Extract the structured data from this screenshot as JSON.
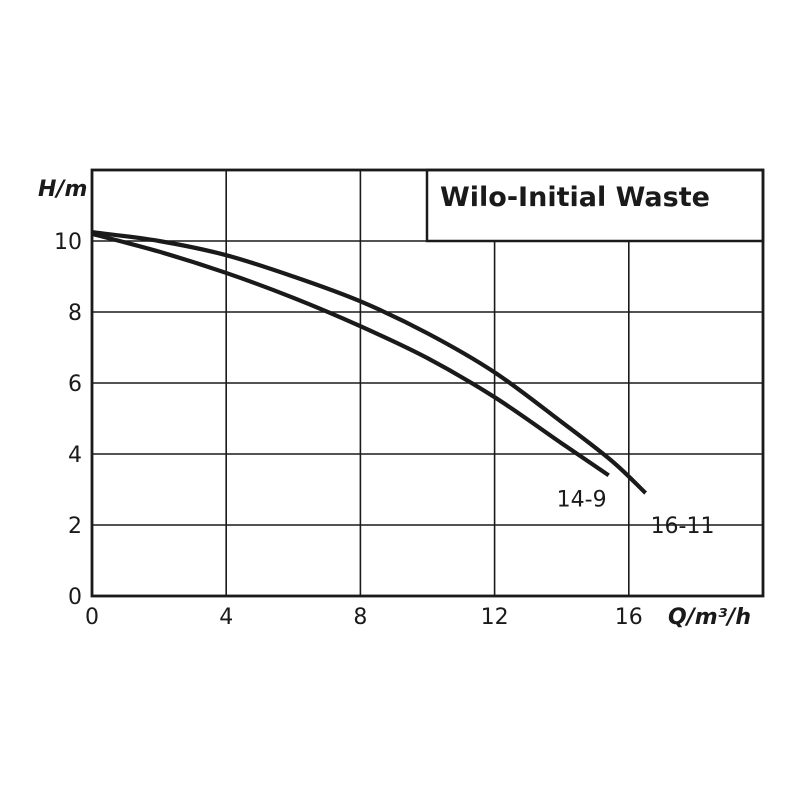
{
  "chart_data": {
    "type": "line",
    "title": "Wilo-Initial Waste",
    "xlabel": "Q/m³/h",
    "ylabel": "H/m",
    "xlim": [
      0,
      20
    ],
    "ylim": [
      0,
      12
    ],
    "x_ticks": [
      "0",
      "4",
      "8",
      "12",
      "16"
    ],
    "y_ticks": [
      "0",
      "2",
      "4",
      "6",
      "8",
      "10"
    ],
    "x_tick_values": [
      0,
      4,
      8,
      12,
      16
    ],
    "y_tick_values": [
      0,
      2,
      4,
      6,
      8,
      10
    ],
    "grid": true,
    "legend": "none",
    "series": [
      {
        "name": "14-9",
        "x": [
          0,
          2,
          4,
          6,
          8,
          10,
          12,
          14,
          15.4
        ],
        "y": [
          10.2,
          9.7,
          9.1,
          8.4,
          7.6,
          6.7,
          5.6,
          4.3,
          3.4
        ]
      },
      {
        "name": "16-11",
        "x": [
          0,
          2,
          4,
          6,
          8,
          10,
          12,
          14,
          15.5,
          16.5
        ],
        "y": [
          10.25,
          10.0,
          9.6,
          9.0,
          8.3,
          7.4,
          6.3,
          4.9,
          3.8,
          2.9
        ]
      }
    ],
    "colors": {
      "line": "#1a1a1a",
      "grid": "#1a1a1a",
      "background": "#ffffff"
    }
  }
}
